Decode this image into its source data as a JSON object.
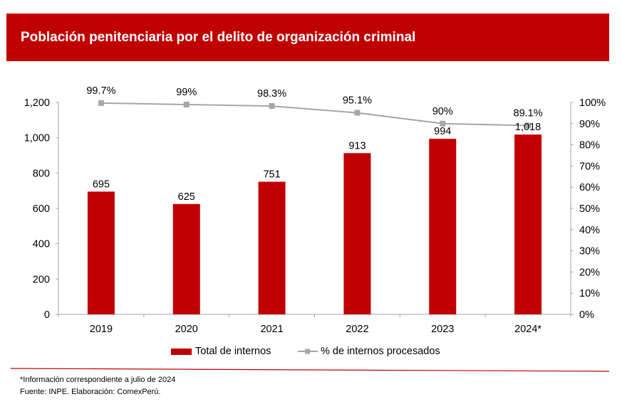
{
  "header": {
    "title": "Población penitenciaria por el delito de organización criminal"
  },
  "colors": {
    "banner": "#c00000",
    "bars": "#c00000",
    "line": "#a6a6a6",
    "axis": "#a6a6a6",
    "footer_rule": "#c00000"
  },
  "chart_data": {
    "type": "bar",
    "title": "Población penitenciaria por el delito de organización criminal",
    "categories": [
      "2019",
      "2020",
      "2021",
      "2022",
      "2023",
      "2024*"
    ],
    "series": [
      {
        "name": "Total de internos",
        "type": "bar",
        "axis": "left",
        "values": [
          695,
          625,
          751,
          913,
          994,
          1018
        ],
        "labels": [
          "695",
          "625",
          "751",
          "913",
          "994",
          "1,018"
        ]
      },
      {
        "name": "% de internos procesados",
        "type": "line",
        "axis": "right",
        "values": [
          99.7,
          99,
          98.3,
          95.1,
          90,
          89.1
        ],
        "labels": [
          "99.7%",
          "99%",
          "98.3%",
          "95.1%",
          "90%",
          "89.1%"
        ]
      }
    ],
    "y_left": {
      "range": [
        0,
        1200
      ],
      "ticks": [
        0,
        200,
        400,
        600,
        800,
        1000,
        1200
      ],
      "tick_labels": [
        "0",
        "200",
        "400",
        "600",
        "800",
        "1,000",
        "1,200"
      ]
    },
    "y_right": {
      "range": [
        0,
        100
      ],
      "ticks": [
        0,
        10,
        20,
        30,
        40,
        50,
        60,
        70,
        80,
        90,
        100
      ],
      "tick_labels": [
        "0%",
        "10%",
        "20%",
        "30%",
        "40%",
        "50%",
        "60%",
        "70%",
        "80%",
        "90%",
        "100%"
      ]
    },
    "xlabel": "",
    "ylabel": "",
    "grid": false,
    "legend": {
      "placement": "bottom",
      "entries": [
        "Total de internos",
        "% de internos procesados"
      ]
    }
  },
  "footer": {
    "note": "*Información  correspondiente  a julio de 2024",
    "source": "Fuente: INPE. Elaboración: ComexPerú."
  }
}
